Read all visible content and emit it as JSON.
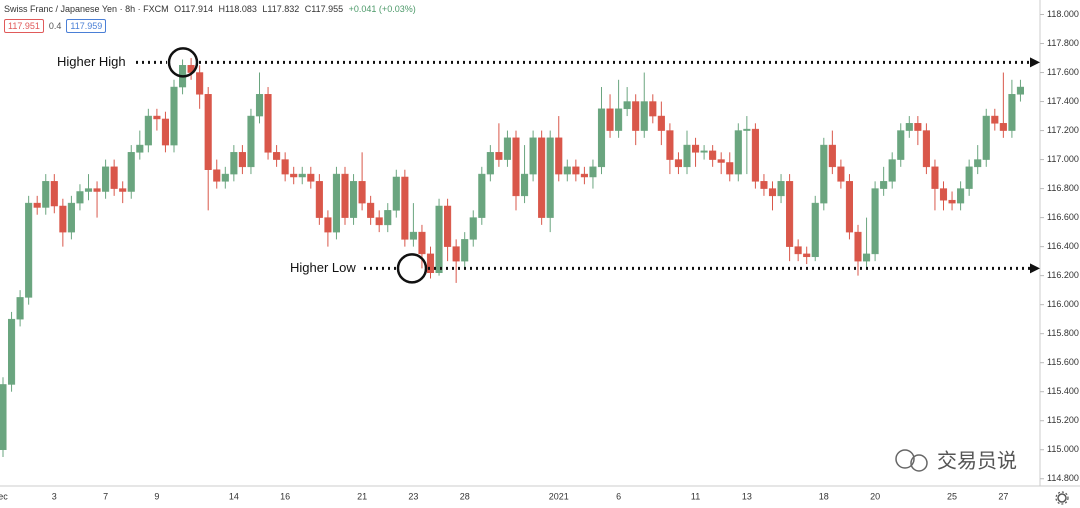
{
  "header": {
    "symbol": "Swiss Franc / Japanese Yen · 8h · FXCM",
    "open": "O117.914",
    "high": "H118.083",
    "low": "L117.832",
    "close": "C117.955",
    "change": "+0.041 (+0.03%)",
    "badges": [
      "117.951",
      "0.4",
      "117.959"
    ]
  },
  "watermark": "交易员说",
  "chart_data": {
    "type": "candlestick",
    "up_color": "#6aa57f",
    "down_color": "#d9574a",
    "categories": [
      "ec",
      null,
      null,
      null,
      null,
      null,
      "3",
      null,
      null,
      null,
      null,
      null,
      "7",
      null,
      null,
      null,
      null,
      null,
      "9",
      null,
      null,
      null,
      null,
      null,
      null,
      null,
      null,
      "14",
      null,
      null,
      null,
      null,
      null,
      "16",
      null,
      null,
      null,
      null,
      null,
      null,
      null,
      null,
      "21",
      null,
      null,
      null,
      null,
      null,
      "23",
      null,
      null,
      null,
      null,
      null,
      "28",
      null,
      null,
      null,
      null,
      null,
      null,
      null,
      null,
      null,
      null,
      "2021",
      null,
      null,
      null,
      null,
      null,
      null,
      "6",
      null,
      null,
      null,
      null,
      null,
      null,
      null,
      null,
      "11",
      null,
      null,
      null,
      null,
      null,
      "13",
      null,
      null,
      null,
      null,
      null,
      null,
      null,
      null,
      "18",
      null,
      null,
      null,
      null,
      null,
      "20",
      null,
      null,
      null,
      null,
      null,
      null,
      null,
      null,
      "25",
      null,
      null,
      null,
      null,
      null,
      "27",
      null,
      null
    ],
    "open": [
      115.0,
      115.45,
      115.9,
      116.05,
      116.7,
      116.67,
      116.85,
      116.68,
      116.5,
      116.7,
      116.78,
      116.8,
      116.78,
      116.95,
      116.8,
      116.78,
      117.05,
      117.1,
      117.3,
      117.28,
      117.1,
      117.5,
      117.65,
      117.6,
      117.45,
      116.93,
      116.85,
      116.9,
      117.05,
      116.95,
      117.3,
      117.45,
      117.05,
      117.0,
      116.9,
      116.88,
      116.9,
      116.85,
      116.6,
      116.5,
      116.9,
      116.6,
      116.85,
      116.7,
      116.6,
      116.55,
      116.65,
      116.88,
      116.45,
      116.5,
      116.35,
      116.22,
      116.68,
      116.4,
      116.3,
      116.45,
      116.6,
      116.9,
      117.05,
      117.0,
      117.15,
      116.75,
      116.9,
      117.15,
      116.6,
      117.15,
      116.9,
      116.95,
      116.9,
      116.88,
      116.95,
      117.35,
      117.2,
      117.35,
      117.4,
      117.2,
      117.4,
      117.3,
      117.2,
      117.0,
      116.95,
      117.1,
      117.05,
      117.06,
      117.0,
      116.98,
      116.9,
      117.2,
      117.21,
      116.85,
      116.8,
      116.75,
      116.85,
      116.4,
      116.35,
      116.33,
      116.7,
      117.1,
      116.95,
      116.85,
      116.5,
      116.3,
      116.35,
      116.8,
      116.85,
      117.0,
      117.2,
      117.25,
      117.2,
      116.95,
      116.8,
      116.72,
      116.7,
      116.8,
      116.95,
      117.0,
      117.3,
      117.25,
      117.2,
      117.45
    ],
    "high": [
      115.5,
      115.95,
      116.1,
      116.75,
      116.75,
      116.9,
      116.9,
      116.73,
      116.75,
      116.83,
      116.9,
      116.85,
      117.0,
      117.0,
      116.85,
      117.1,
      117.2,
      117.35,
      117.35,
      117.33,
      117.55,
      117.69,
      117.7,
      117.65,
      117.5,
      117.0,
      116.95,
      117.1,
      117.1,
      117.35,
      117.6,
      117.5,
      117.1,
      117.05,
      116.95,
      116.95,
      116.95,
      116.9,
      116.65,
      116.95,
      116.95,
      116.9,
      117.05,
      116.75,
      116.65,
      116.7,
      116.93,
      116.93,
      116.7,
      116.55,
      116.4,
      116.73,
      116.73,
      116.45,
      116.5,
      116.65,
      116.95,
      117.1,
      117.25,
      117.2,
      117.2,
      117.1,
      117.2,
      117.2,
      117.2,
      117.3,
      117.0,
      117.0,
      116.95,
      117.0,
      117.5,
      117.45,
      117.55,
      117.5,
      117.45,
      117.6,
      117.45,
      117.4,
      117.25,
      117.05,
      117.2,
      117.15,
      117.1,
      117.1,
      117.05,
      117.05,
      117.25,
      117.3,
      117.25,
      116.9,
      116.85,
      116.9,
      116.9,
      116.45,
      116.4,
      116.75,
      117.15,
      117.2,
      117.0,
      116.9,
      116.55,
      116.6,
      116.85,
      116.95,
      117.05,
      117.25,
      117.3,
      117.3,
      117.25,
      117.0,
      116.85,
      116.78,
      116.85,
      117.0,
      117.1,
      117.35,
      117.35,
      117.6,
      117.55,
      117.55
    ],
    "low": [
      114.95,
      115.4,
      115.85,
      116.0,
      116.62,
      116.62,
      116.63,
      116.4,
      116.45,
      116.65,
      116.72,
      116.6,
      116.73,
      116.75,
      116.7,
      116.73,
      117.0,
      117.05,
      117.2,
      117.05,
      117.05,
      117.45,
      117.55,
      117.35,
      116.65,
      116.8,
      116.8,
      116.85,
      116.9,
      116.9,
      117.25,
      117.0,
      116.95,
      116.85,
      116.83,
      116.83,
      116.8,
      116.55,
      116.4,
      116.45,
      116.55,
      116.55,
      116.65,
      116.55,
      116.5,
      116.5,
      116.6,
      116.4,
      116.4,
      116.25,
      116.18,
      116.2,
      116.3,
      116.15,
      116.25,
      116.4,
      116.55,
      116.85,
      116.95,
      116.95,
      116.65,
      116.7,
      116.85,
      116.55,
      116.5,
      116.85,
      116.85,
      116.85,
      116.83,
      116.8,
      116.9,
      117.15,
      117.15,
      117.3,
      117.1,
      117.15,
      117.25,
      117.1,
      116.9,
      116.9,
      116.9,
      116.95,
      117.0,
      116.95,
      116.9,
      116.85,
      116.85,
      116.9,
      116.8,
      116.75,
      116.65,
      116.7,
      116.3,
      116.3,
      116.28,
      116.3,
      116.65,
      116.9,
      116.8,
      116.45,
      116.2,
      116.25,
      116.3,
      116.75,
      116.8,
      116.95,
      117.15,
      117.1,
      116.9,
      116.65,
      116.65,
      116.65,
      116.65,
      116.75,
      116.9,
      116.95,
      117.2,
      117.15,
      117.15,
      117.4
    ],
    "close": [
      115.45,
      115.9,
      116.05,
      116.7,
      116.67,
      116.85,
      116.68,
      116.5,
      116.7,
      116.78,
      116.8,
      116.78,
      116.95,
      116.8,
      116.78,
      117.05,
      117.1,
      117.3,
      117.28,
      117.1,
      117.5,
      117.65,
      117.6,
      117.45,
      116.93,
      116.85,
      116.9,
      117.05,
      116.95,
      117.3,
      117.45,
      117.05,
      117.0,
      116.9,
      116.88,
      116.9,
      116.85,
      116.6,
      116.5,
      116.9,
      116.6,
      116.85,
      116.7,
      116.6,
      116.55,
      116.65,
      116.88,
      116.45,
      116.5,
      116.35,
      116.22,
      116.68,
      116.4,
      116.3,
      116.45,
      116.6,
      116.9,
      117.05,
      117.0,
      117.15,
      116.75,
      116.9,
      117.15,
      116.6,
      117.15,
      116.9,
      116.95,
      116.9,
      116.88,
      116.95,
      117.35,
      117.2,
      117.35,
      117.4,
      117.2,
      117.4,
      117.3,
      117.2,
      117.0,
      116.95,
      117.1,
      117.05,
      117.06,
      117.0,
      116.98,
      116.9,
      117.2,
      117.21,
      116.85,
      116.8,
      116.75,
      116.85,
      116.4,
      116.35,
      116.33,
      116.7,
      117.1,
      116.95,
      116.85,
      116.5,
      116.3,
      116.35,
      116.8,
      116.85,
      117.0,
      117.2,
      117.25,
      117.2,
      116.95,
      116.8,
      116.72,
      116.7,
      116.8,
      116.95,
      117.0,
      117.3,
      117.25,
      117.2,
      117.45,
      117.5
    ],
    "ylim": [
      114.75,
      118.1
    ],
    "yticks": [
      {
        "value": 114.8,
        "label": "114.800"
      },
      {
        "value": 115,
        "label": "115.000"
      },
      {
        "value": 115.2,
        "label": "115.200"
      },
      {
        "value": 115.4,
        "label": "115.400"
      },
      {
        "value": 115.6,
        "label": "115.600"
      },
      {
        "value": 115.8,
        "label": "115.800"
      },
      {
        "value": 116,
        "label": "116.000"
      },
      {
        "value": 116.2,
        "label": "116.200"
      },
      {
        "value": 116.4,
        "label": "116.400"
      },
      {
        "value": 116.6,
        "label": "116.600"
      },
      {
        "value": 116.8,
        "label": "116.800"
      },
      {
        "value": 117,
        "label": "117.000"
      },
      {
        "value": 117.2,
        "label": "117.200"
      },
      {
        "value": 117.4,
        "label": "117.400"
      },
      {
        "value": 117.6,
        "label": "117.600"
      },
      {
        "value": 117.8,
        "label": "117.800"
      },
      {
        "value": 118,
        "label": "118.000"
      }
    ],
    "annotations": [
      {
        "text": "Higher High",
        "value": 117.67
      },
      {
        "text": "Higher Low",
        "value": 116.25
      }
    ]
  }
}
